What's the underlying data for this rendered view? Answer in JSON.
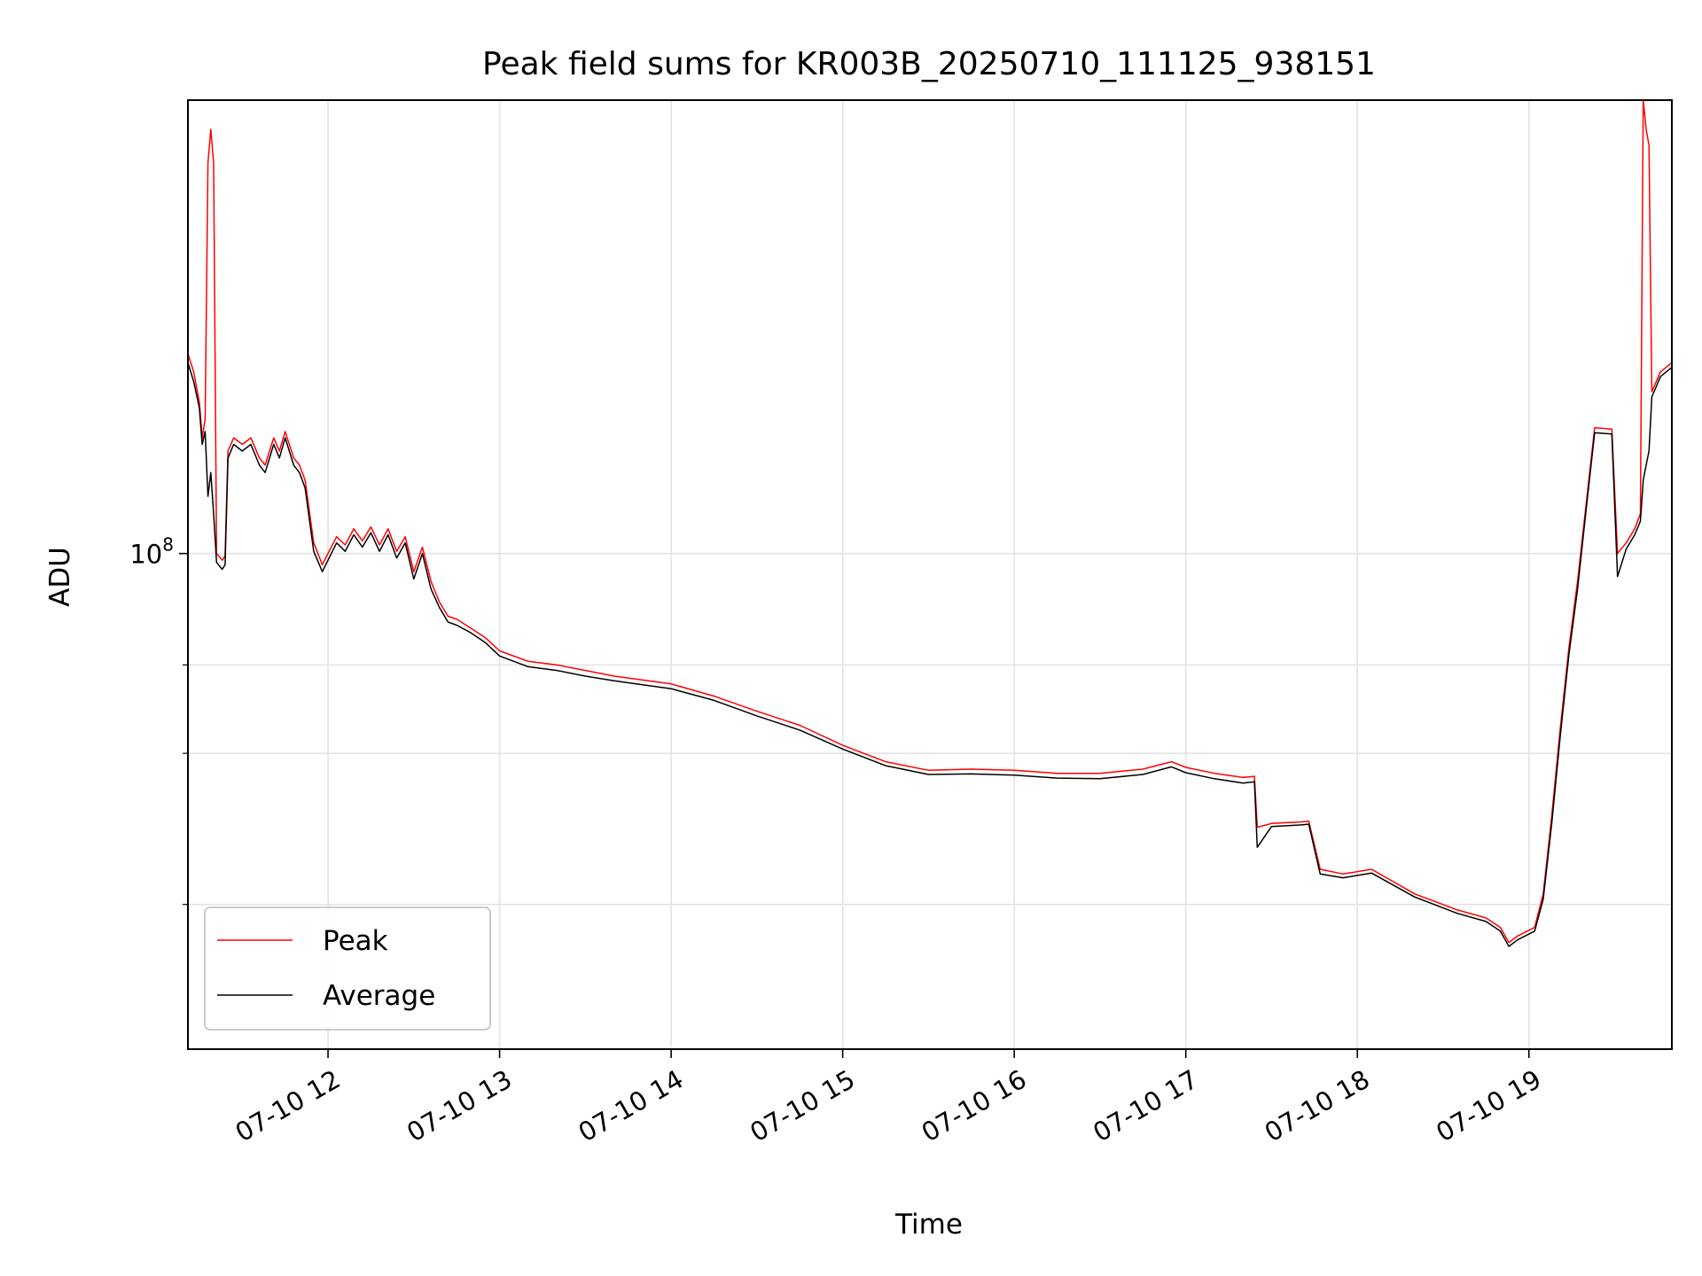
{
  "chart_data": {
    "type": "line",
    "title": "Peak field sums for KR003B_20250710_111125_938151",
    "xlabel": "Time",
    "ylabel": "ADU",
    "yscale": "log",
    "xlim": [
      "2025-07-10 11:11",
      "2025-07-10 19:50"
    ],
    "ylim": [
      10300000,
      800000000
    ],
    "grid": true,
    "legend_position": "lower-left",
    "x_ticks": [
      "07-10 12",
      "07-10 13",
      "07-10 14",
      "07-10 15",
      "07-10 16",
      "07-10 17",
      "07-10 18",
      "07-10 19"
    ],
    "x_tick_times": [
      "2025-07-10 12:00",
      "2025-07-10 13:00",
      "2025-07-10 14:00",
      "2025-07-10 15:00",
      "2025-07-10 16:00",
      "2025-07-10 17:00",
      "2025-07-10 18:00",
      "2025-07-10 19:00"
    ],
    "y_tick_major": {
      "value": 100000000,
      "label_base": "10",
      "label_exp": "8"
    },
    "y_minor_ticks": [
      60000000,
      40000000,
      20000000
    ],
    "series": [
      {
        "name": "Peak",
        "color": "#ff0000",
        "points": [
          [
            "2025-07-10 11:11",
            250000000
          ],
          [
            "2025-07-10 11:13",
            230000000
          ],
          [
            "2025-07-10 11:15",
            200000000
          ],
          [
            "2025-07-10 11:16",
            170000000
          ],
          [
            "2025-07-10 11:17",
            185000000
          ],
          [
            "2025-07-10 11:18",
            600000000
          ],
          [
            "2025-07-10 11:19",
            700000000
          ],
          [
            "2025-07-10 11:20",
            600000000
          ],
          [
            "2025-07-10 11:21",
            100000000
          ],
          [
            "2025-07-10 11:23",
            97000000
          ],
          [
            "2025-07-10 11:24",
            99000000
          ],
          [
            "2025-07-10 11:25",
            160000000
          ],
          [
            "2025-07-10 11:27",
            170000000
          ],
          [
            "2025-07-10 11:30",
            165000000
          ],
          [
            "2025-07-10 11:33",
            170000000
          ],
          [
            "2025-07-10 11:36",
            155000000
          ],
          [
            "2025-07-10 11:38",
            150000000
          ],
          [
            "2025-07-10 11:41",
            170000000
          ],
          [
            "2025-07-10 11:43",
            160000000
          ],
          [
            "2025-07-10 11:45",
            175000000
          ],
          [
            "2025-07-10 11:48",
            155000000
          ],
          [
            "2025-07-10 11:50",
            150000000
          ],
          [
            "2025-07-10 11:52",
            140000000
          ],
          [
            "2025-07-10 11:55",
            105000000
          ],
          [
            "2025-07-10 11:58",
            95000000
          ],
          [
            "2025-07-10 12:00",
            100000000
          ],
          [
            "2025-07-10 12:03",
            108000000
          ],
          [
            "2025-07-10 12:06",
            104000000
          ],
          [
            "2025-07-10 12:09",
            112000000
          ],
          [
            "2025-07-10 12:12",
            106000000
          ],
          [
            "2025-07-10 12:15",
            113000000
          ],
          [
            "2025-07-10 12:18",
            104000000
          ],
          [
            "2025-07-10 12:21",
            112000000
          ],
          [
            "2025-07-10 12:24",
            101000000
          ],
          [
            "2025-07-10 12:27",
            108000000
          ],
          [
            "2025-07-10 12:30",
            92000000
          ],
          [
            "2025-07-10 12:33",
            103000000
          ],
          [
            "2025-07-10 12:36",
            88000000
          ],
          [
            "2025-07-10 12:39",
            80000000
          ],
          [
            "2025-07-10 12:42",
            75000000
          ],
          [
            "2025-07-10 12:45",
            74000000
          ],
          [
            "2025-07-10 12:50",
            71000000
          ],
          [
            "2025-07-10 12:55",
            68000000
          ],
          [
            "2025-07-10 13:00",
            64000000
          ],
          [
            "2025-07-10 13:10",
            61000000
          ],
          [
            "2025-07-10 13:20",
            60000000
          ],
          [
            "2025-07-10 13:30",
            58500000
          ],
          [
            "2025-07-10 13:40",
            57000000
          ],
          [
            "2025-07-10 13:50",
            56000000
          ],
          [
            "2025-07-10 14:00",
            55000000
          ],
          [
            "2025-07-10 14:15",
            52000000
          ],
          [
            "2025-07-10 14:30",
            48500000
          ],
          [
            "2025-07-10 14:45",
            45500000
          ],
          [
            "2025-07-10 15:00",
            41500000
          ],
          [
            "2025-07-10 15:15",
            38500000
          ],
          [
            "2025-07-10 15:30",
            37000000
          ],
          [
            "2025-07-10 15:45",
            37200000
          ],
          [
            "2025-07-10 16:00",
            37000000
          ],
          [
            "2025-07-10 16:15",
            36500000
          ],
          [
            "2025-07-10 16:30",
            36500000
          ],
          [
            "2025-07-10 16:45",
            37200000
          ],
          [
            "2025-07-10 16:55",
            38500000
          ],
          [
            "2025-07-10 17:00",
            37500000
          ],
          [
            "2025-07-10 17:10",
            36500000
          ],
          [
            "2025-07-10 17:20",
            35800000
          ],
          [
            "2025-07-10 17:24",
            36000000
          ],
          [
            "2025-07-10 17:25",
            28500000
          ],
          [
            "2025-07-10 17:30",
            29000000
          ],
          [
            "2025-07-10 17:40",
            29200000
          ],
          [
            "2025-07-10 17:43",
            29300000
          ],
          [
            "2025-07-10 17:47",
            23500000
          ],
          [
            "2025-07-10 17:55",
            23000000
          ],
          [
            "2025-07-10 18:05",
            23500000
          ],
          [
            "2025-07-10 18:20",
            21000000
          ],
          [
            "2025-07-10 18:35",
            19500000
          ],
          [
            "2025-07-10 18:45",
            18800000
          ],
          [
            "2025-07-10 18:50",
            18000000
          ],
          [
            "2025-07-10 18:53",
            16800000
          ],
          [
            "2025-07-10 18:56",
            17300000
          ],
          [
            "2025-07-10 19:02",
            18000000
          ],
          [
            "2025-07-10 19:05",
            21000000
          ],
          [
            "2025-07-10 19:08",
            30000000
          ],
          [
            "2025-07-10 19:11",
            45000000
          ],
          [
            "2025-07-10 19:14",
            65000000
          ],
          [
            "2025-07-10 19:17",
            88000000
          ],
          [
            "2025-07-10 19:20",
            125000000
          ],
          [
            "2025-07-10 19:23",
            178000000
          ],
          [
            "2025-07-10 19:29",
            177000000
          ],
          [
            "2025-07-10 19:31",
            100000000
          ],
          [
            "2025-07-10 19:34",
            105000000
          ],
          [
            "2025-07-10 19:37",
            112000000
          ],
          [
            "2025-07-10 19:39",
            120000000
          ],
          [
            "2025-07-10 19:40",
            800000000
          ],
          [
            "2025-07-10 19:41",
            700000000
          ],
          [
            "2025-07-10 19:42",
            650000000
          ],
          [
            "2025-07-10 19:43",
            210000000
          ],
          [
            "2025-07-10 19:46",
            230000000
          ],
          [
            "2025-07-10 19:50",
            240000000
          ]
        ]
      },
      {
        "name": "Average",
        "color": "#000000",
        "points": [
          [
            "2025-07-10 11:11",
            240000000
          ],
          [
            "2025-07-10 11:13",
            220000000
          ],
          [
            "2025-07-10 11:15",
            195000000
          ],
          [
            "2025-07-10 11:16",
            165000000
          ],
          [
            "2025-07-10 11:17",
            175000000
          ],
          [
            "2025-07-10 11:18",
            130000000
          ],
          [
            "2025-07-10 11:19",
            145000000
          ],
          [
            "2025-07-10 11:20",
            120000000
          ],
          [
            "2025-07-10 11:21",
            96000000
          ],
          [
            "2025-07-10 11:23",
            93000000
          ],
          [
            "2025-07-10 11:24",
            95000000
          ],
          [
            "2025-07-10 11:25",
            155000000
          ],
          [
            "2025-07-10 11:27",
            165000000
          ],
          [
            "2025-07-10 11:30",
            160000000
          ],
          [
            "2025-07-10 11:33",
            165000000
          ],
          [
            "2025-07-10 11:36",
            150000000
          ],
          [
            "2025-07-10 11:38",
            145000000
          ],
          [
            "2025-07-10 11:41",
            165000000
          ],
          [
            "2025-07-10 11:43",
            155000000
          ],
          [
            "2025-07-10 11:45",
            170000000
          ],
          [
            "2025-07-10 11:48",
            150000000
          ],
          [
            "2025-07-10 11:50",
            145000000
          ],
          [
            "2025-07-10 11:52",
            135000000
          ],
          [
            "2025-07-10 11:55",
            101000000
          ],
          [
            "2025-07-10 11:58",
            92000000
          ],
          [
            "2025-07-10 12:00",
            97000000
          ],
          [
            "2025-07-10 12:03",
            105000000
          ],
          [
            "2025-07-10 12:06",
            101000000
          ],
          [
            "2025-07-10 12:09",
            109000000
          ],
          [
            "2025-07-10 12:12",
            103000000
          ],
          [
            "2025-07-10 12:15",
            110000000
          ],
          [
            "2025-07-10 12:18",
            101000000
          ],
          [
            "2025-07-10 12:21",
            109000000
          ],
          [
            "2025-07-10 12:24",
            98000000
          ],
          [
            "2025-07-10 12:27",
            105000000
          ],
          [
            "2025-07-10 12:30",
            89000000
          ],
          [
            "2025-07-10 12:33",
            100000000
          ],
          [
            "2025-07-10 12:36",
            85000000
          ],
          [
            "2025-07-10 12:39",
            78000000
          ],
          [
            "2025-07-10 12:42",
            73000000
          ],
          [
            "2025-07-10 12:45",
            72000000
          ],
          [
            "2025-07-10 12:50",
            69500000
          ],
          [
            "2025-07-10 12:55",
            66500000
          ],
          [
            "2025-07-10 13:00",
            62500000
          ],
          [
            "2025-07-10 13:10",
            59500000
          ],
          [
            "2025-07-10 13:20",
            58500000
          ],
          [
            "2025-07-10 13:30",
            57000000
          ],
          [
            "2025-07-10 13:40",
            55800000
          ],
          [
            "2025-07-10 13:50",
            54800000
          ],
          [
            "2025-07-10 14:00",
            53800000
          ],
          [
            "2025-07-10 14:15",
            51000000
          ],
          [
            "2025-07-10 14:30",
            47500000
          ],
          [
            "2025-07-10 14:45",
            44500000
          ],
          [
            "2025-07-10 15:00",
            40800000
          ],
          [
            "2025-07-10 15:15",
            37800000
          ],
          [
            "2025-07-10 15:30",
            36300000
          ],
          [
            "2025-07-10 15:45",
            36400000
          ],
          [
            "2025-07-10 16:00",
            36200000
          ],
          [
            "2025-07-10 16:15",
            35700000
          ],
          [
            "2025-07-10 16:30",
            35600000
          ],
          [
            "2025-07-10 16:45",
            36300000
          ],
          [
            "2025-07-10 16:55",
            37600000
          ],
          [
            "2025-07-10 17:00",
            36600000
          ],
          [
            "2025-07-10 17:10",
            35600000
          ],
          [
            "2025-07-10 17:20",
            34900000
          ],
          [
            "2025-07-10 17:24",
            35100000
          ],
          [
            "2025-07-10 17:25",
            26000000
          ],
          [
            "2025-07-10 17:30",
            28600000
          ],
          [
            "2025-07-10 17:40",
            28800000
          ],
          [
            "2025-07-10 17:43",
            28900000
          ],
          [
            "2025-07-10 17:47",
            23000000
          ],
          [
            "2025-07-10 17:55",
            22600000
          ],
          [
            "2025-07-10 18:05",
            23100000
          ],
          [
            "2025-07-10 18:20",
            20700000
          ],
          [
            "2025-07-10 18:35",
            19200000
          ],
          [
            "2025-07-10 18:45",
            18500000
          ],
          [
            "2025-07-10 18:50",
            17700000
          ],
          [
            "2025-07-10 18:53",
            16500000
          ],
          [
            "2025-07-10 18:56",
            17000000
          ],
          [
            "2025-07-10 19:02",
            17700000
          ],
          [
            "2025-07-10 19:05",
            20500000
          ],
          [
            "2025-07-10 19:08",
            29000000
          ],
          [
            "2025-07-10 19:11",
            43500000
          ],
          [
            "2025-07-10 19:14",
            63000000
          ],
          [
            "2025-07-10 19:17",
            85000000
          ],
          [
            "2025-07-10 19:20",
            122000000
          ],
          [
            "2025-07-10 19:23",
            174000000
          ],
          [
            "2025-07-10 19:29",
            173000000
          ],
          [
            "2025-07-10 19:31",
            90000000
          ],
          [
            "2025-07-10 19:34",
            102000000
          ],
          [
            "2025-07-10 19:37",
            109000000
          ],
          [
            "2025-07-10 19:39",
            116000000
          ],
          [
            "2025-07-10 19:40",
            140000000
          ],
          [
            "2025-07-10 19:41",
            150000000
          ],
          [
            "2025-07-10 19:42",
            160000000
          ],
          [
            "2025-07-10 19:43",
            205000000
          ],
          [
            "2025-07-10 19:46",
            225000000
          ],
          [
            "2025-07-10 19:50",
            235000000
          ]
        ]
      }
    ]
  }
}
